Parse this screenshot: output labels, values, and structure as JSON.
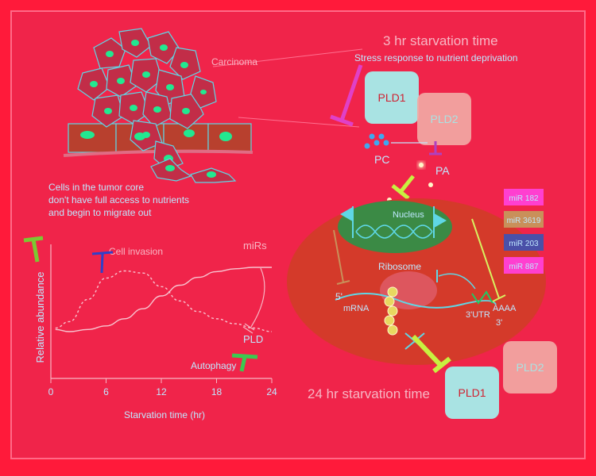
{
  "colors": {
    "background": "#ff1a3a",
    "frame": "#ff6a88",
    "panel": "#f0244a",
    "cell_outline": "#5fd7e6",
    "nucleus_dot": "#22e890",
    "brick": "#b8402e",
    "pld_box": "#a9e3e3",
    "pld2_box": "#f2a9a4",
    "cell_body": "#d43a2a",
    "nucleus": "#3b8a45",
    "label_light": "#f7b6c4",
    "label_blue": "#bfe8ff"
  },
  "illustration": {
    "carcinoma_label": "Carcinoma",
    "tumor_caption": [
      "Cells in the tumor core",
      "don't have full access to nutrients",
      "and begin to migrate out"
    ]
  },
  "top_panel": {
    "title": "3 hr starvation time",
    "subtitle": "Stress response to nutrient deprivation",
    "pld1": "PLD1",
    "pld2": "PLD2",
    "pc": "PC",
    "pa": "PA"
  },
  "cell": {
    "nucleus_label": "Nucleus",
    "ribosome_label": "Ribosome",
    "five_prime": "5'",
    "mrna_label": "mRNA",
    "three_utr": "3'UTR",
    "poly_a": "AAAA",
    "three_prime": "3'"
  },
  "mirs": [
    {
      "label": "miR 182",
      "color": "#ff3fd0"
    },
    {
      "label": "miR 3619",
      "color": "#c9905a"
    },
    {
      "label": "miR 203",
      "color": "#4a50a8"
    },
    {
      "label": "miR 887",
      "color": "#ff3fd0"
    }
  ],
  "bottom_panel": {
    "title": "24 hr starvation time",
    "pld1": "PLD1",
    "pld2": "PLD2"
  },
  "chart": {
    "ylabel": "Relative abundance",
    "xlabel": "Starvation time (hr)",
    "ticks": [
      "0",
      "6",
      "12",
      "18",
      "24"
    ],
    "labels": {
      "cell_invasion": "Cell invasion",
      "mirs": "miRs",
      "pld": "PLD",
      "autophagy": "Autophagy"
    }
  },
  "chart_data": {
    "type": "line",
    "xlabel": "Starvation time (hr)",
    "ylabel": "Relative abundance",
    "x_ticks": [
      0,
      6,
      12,
      18,
      24
    ],
    "xlim": [
      0,
      24
    ],
    "series": [
      {
        "name": "Cell invasion",
        "style": "dashed",
        "x": [
          0.5,
          2,
          4,
          6,
          8,
          10,
          12,
          14,
          16,
          18,
          20,
          22,
          24
        ],
        "y": [
          0.05,
          0.14,
          0.45,
          0.75,
          0.85,
          0.82,
          0.63,
          0.43,
          0.28,
          0.18,
          0.11,
          0.05,
          0.0
        ]
      },
      {
        "name": "miRs",
        "style": "solid",
        "x": [
          0.5,
          2,
          4,
          6,
          8,
          10,
          12,
          14,
          16,
          18,
          20,
          22,
          24
        ],
        "y": [
          0.03,
          0.0,
          0.03,
          0.08,
          0.18,
          0.32,
          0.5,
          0.65,
          0.76,
          0.84,
          0.88,
          0.9,
          0.9
        ]
      }
    ]
  }
}
